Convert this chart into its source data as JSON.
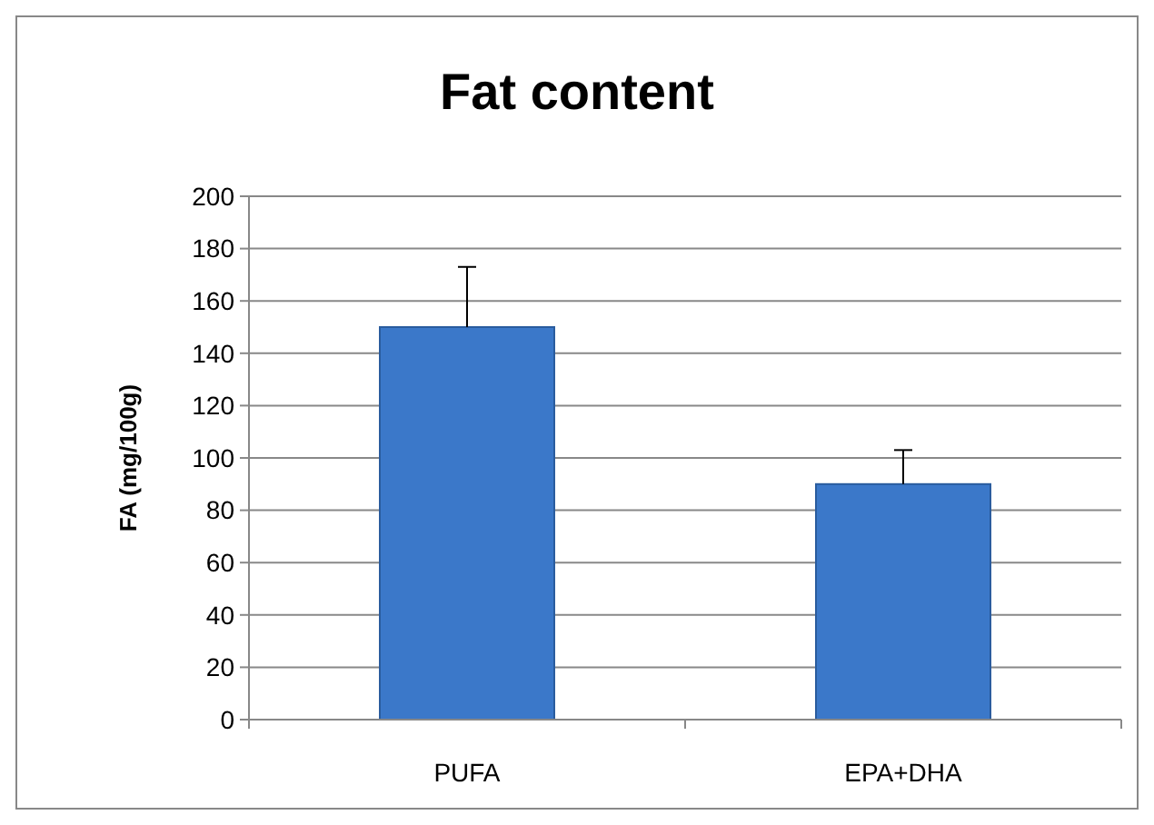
{
  "chart_data": {
    "type": "bar",
    "title": "Fat content",
    "ylabel": "FA (mg/100g)",
    "categories": [
      "PUFA",
      "EPA+DHA"
    ],
    "values": [
      150,
      90
    ],
    "color": "#3b78c9",
    "errors": [
      [
        150,
        173
      ],
      [
        90,
        103
      ]
    ],
    "ylim": [
      0,
      200
    ],
    "yticks": [
      0,
      20,
      40,
      60,
      80,
      100,
      120,
      140,
      160,
      180,
      200
    ],
    "grid": "y"
  }
}
